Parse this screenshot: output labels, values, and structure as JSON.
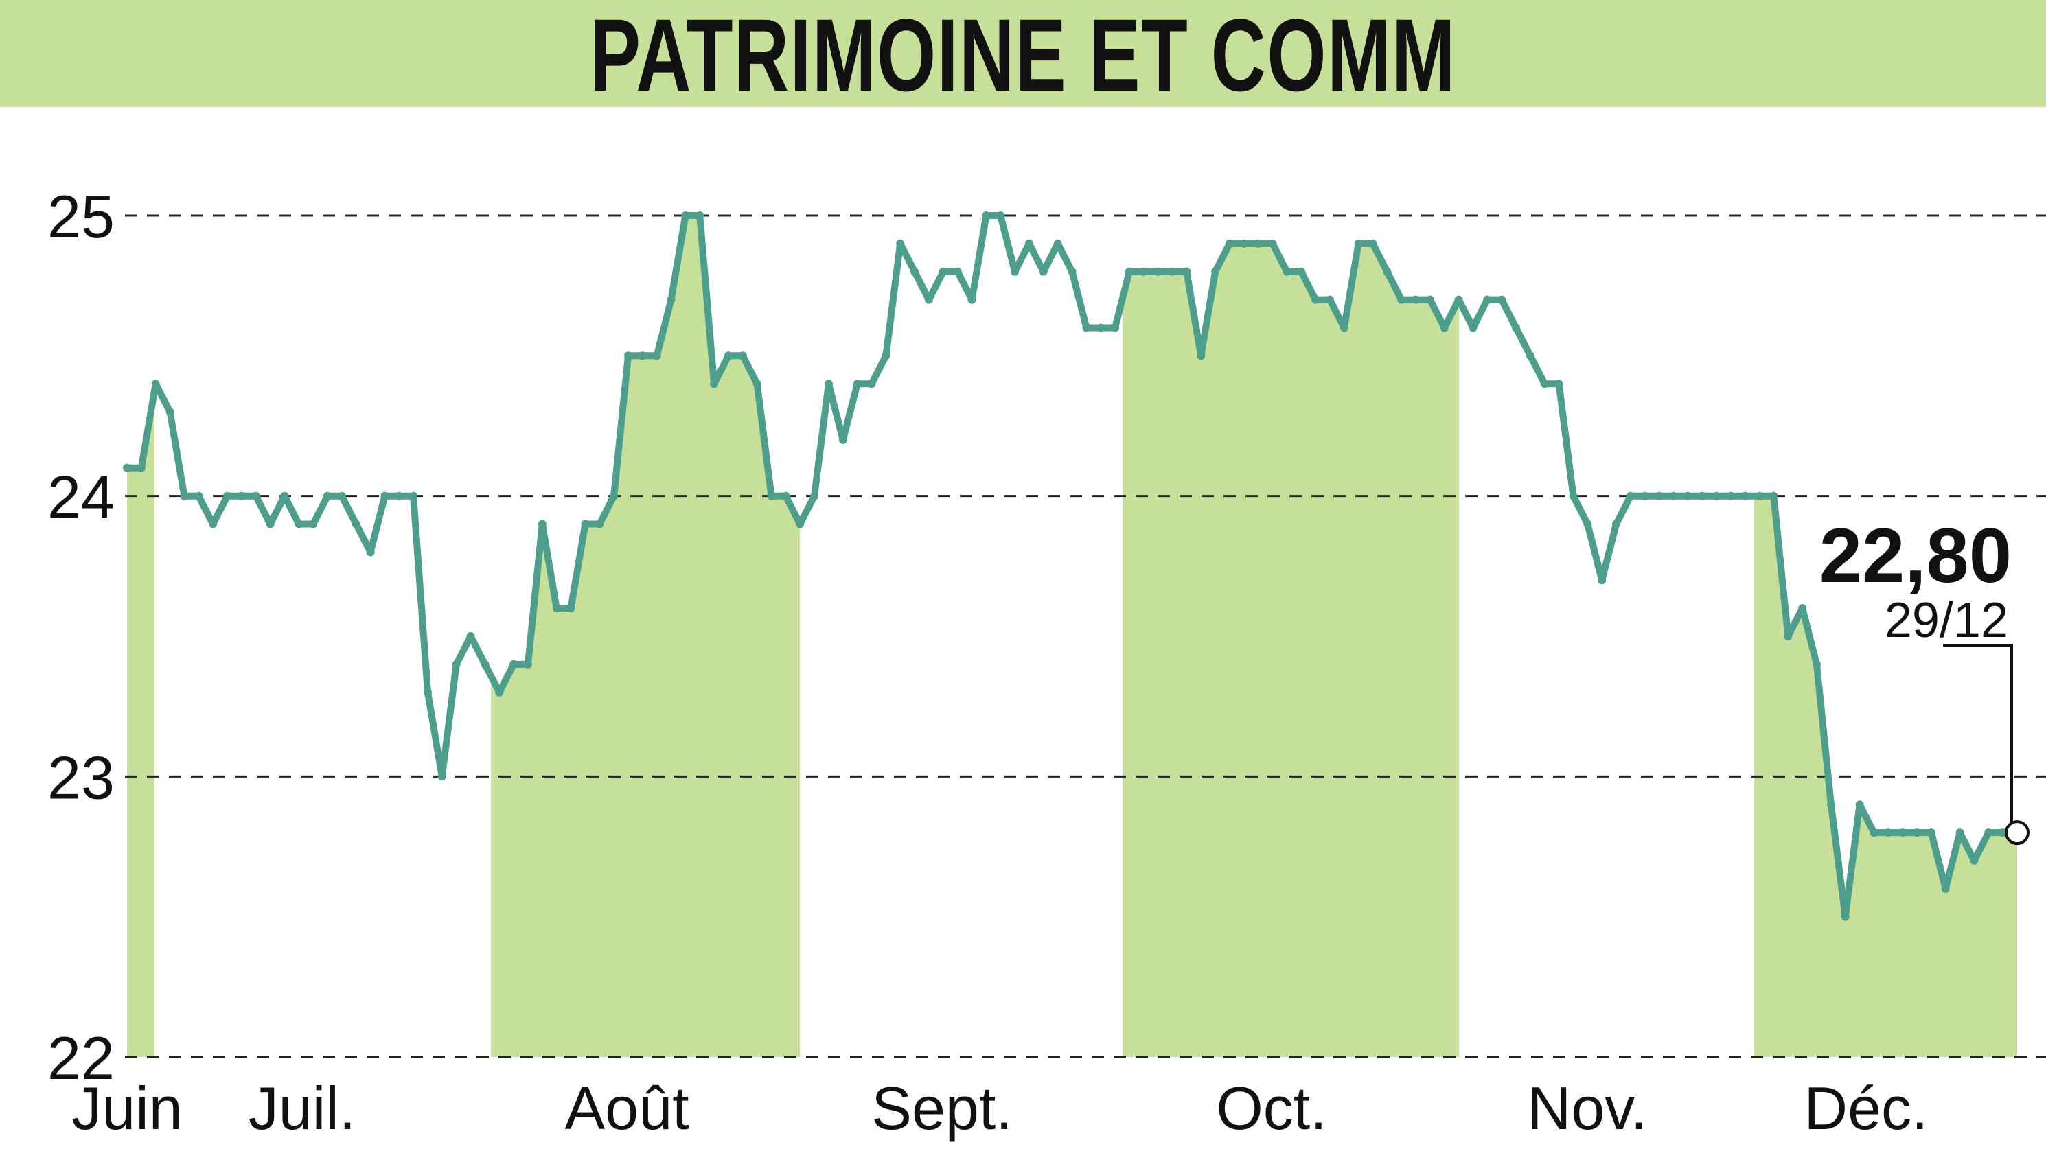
{
  "header": {
    "title": "PATRIMOINE ET COMM"
  },
  "colors": {
    "title_bar": "#c6e09a",
    "band": "#c6e09a",
    "line": "#4d9e8c",
    "grid": "#222222",
    "text": "#111111"
  },
  "chart_data": {
    "type": "area",
    "title": "PATRIMOINE ET COMM",
    "xlabel": "",
    "ylabel": "",
    "ylim": [
      22,
      25
    ],
    "yticks": [
      "22",
      "23",
      "24",
      "25"
    ],
    "grid": true,
    "months": [
      "Juin",
      "Juil.",
      "Août",
      "Sept.",
      "Oct.",
      "Nov.",
      "Déc."
    ],
    "shaded_months": [
      "Juin",
      "Août",
      "Oct.",
      "Déc."
    ],
    "last_value": "22,80",
    "last_date": "29/12",
    "series": [
      {
        "values": [
          24.1,
          24.1,
          24.4,
          24.3,
          24.0,
          24.0,
          23.9,
          24.0,
          24.0,
          24.0,
          23.9,
          24.0,
          23.9,
          23.9,
          24.0,
          24.0,
          23.9,
          23.8,
          24.0,
          24.0,
          24.0,
          23.3,
          23.0,
          23.4,
          23.5,
          23.4,
          23.3,
          23.4,
          23.4,
          23.9,
          23.6,
          23.6,
          23.9,
          23.9,
          24.0,
          24.5,
          24.5,
          24.5,
          24.7,
          25.0,
          25.0,
          24.4,
          24.5,
          24.5,
          24.4,
          24.0,
          24.0,
          23.9,
          24.0,
          24.4,
          24.2,
          24.4,
          24.4,
          24.5,
          24.9,
          24.8,
          24.7,
          24.8,
          24.8,
          24.7,
          25.0,
          25.0,
          24.8,
          24.9,
          24.8,
          24.9,
          24.8,
          24.6,
          24.6,
          24.6,
          24.8,
          24.8,
          24.8,
          24.8,
          24.8,
          24.5,
          24.8,
          24.9,
          24.9,
          24.9,
          24.9,
          24.8,
          24.8,
          24.7,
          24.7,
          24.6,
          24.9,
          24.9,
          24.8,
          24.7,
          24.7,
          24.7,
          24.6,
          24.7,
          24.6,
          24.7,
          24.7,
          24.6,
          24.5,
          24.4,
          24.4,
          24.0,
          23.9,
          23.7,
          23.9,
          24.0,
          24.0,
          24.0,
          24.0,
          24.0,
          24.0,
          24.0,
          24.0,
          24.0,
          24.0,
          24.0,
          23.5,
          23.6,
          23.4,
          22.9,
          22.5,
          22.9,
          22.8,
          22.8,
          22.8,
          22.8,
          22.8,
          22.6,
          22.8,
          22.7,
          22.8,
          22.8,
          22.8
        ]
      }
    ]
  }
}
